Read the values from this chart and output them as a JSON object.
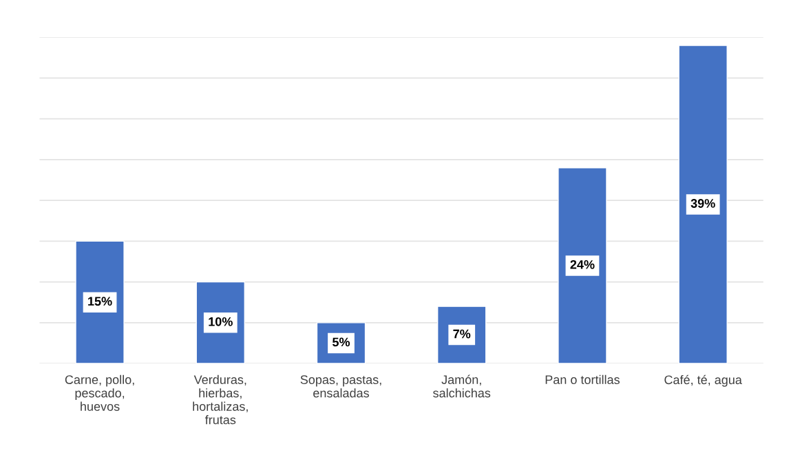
{
  "chart_data": {
    "type": "bar",
    "categories": [
      "Carne, pollo,\npescado,\nhuevos",
      "Verduras,\nhierbas,\nhortalizas,\nfrutas",
      "Sopas, pastas,\nensaladas",
      "Jamón,\nsalchichas",
      "Pan o tortillas",
      "Café, té, agua"
    ],
    "values": [
      15,
      10,
      5,
      7,
      24,
      39
    ],
    "color": "#4472c4",
    "ylim": [
      0,
      40
    ],
    "yticks": [
      {
        "value": 0,
        "label": null
      },
      {
        "value": 5,
        "label": null
      },
      {
        "value": 10,
        "label": null
      },
      {
        "value": 15,
        "label": null
      },
      {
        "value": 20,
        "label": null
      },
      {
        "value": 25,
        "label": null
      },
      {
        "value": 30,
        "label": null
      },
      {
        "value": 35,
        "label": null
      },
      {
        "value": 40,
        "label": null
      }
    ],
    "grid": "y",
    "value_labels": [
      "15%",
      "10%",
      "5%",
      "7%",
      "24%",
      "39%"
    ]
  }
}
